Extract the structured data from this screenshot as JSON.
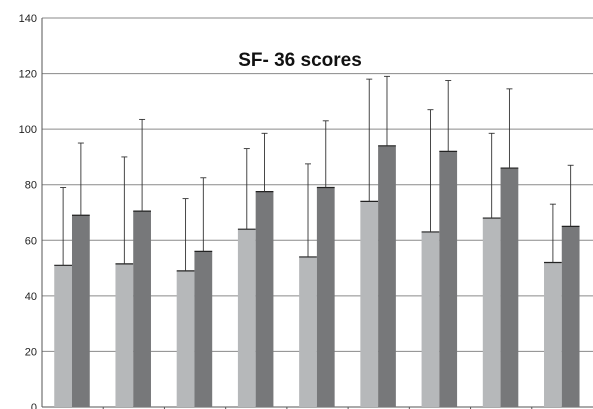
{
  "chart_data": {
    "type": "bar",
    "title": "SF- 36 scores",
    "xlabel": "",
    "ylabel": "",
    "ylim": [
      0,
      140
    ],
    "yticks": [
      0,
      20,
      40,
      60,
      80,
      100,
      120,
      140
    ],
    "grid": true,
    "error_bars": true,
    "categories": [
      "",
      "",
      "",
      "",
      "",
      "",
      "",
      "",
      ""
    ],
    "series": [
      {
        "color": "#b6b8ba",
        "values": [
          51,
          51.5,
          49,
          64,
          54,
          74,
          63,
          68,
          52
        ],
        "error_upper": [
          79,
          90,
          75,
          93,
          87.5,
          118,
          107,
          98.5,
          73
        ]
      },
      {
        "color": "#77787a",
        "values": [
          69,
          70.5,
          56,
          77.5,
          79,
          94,
          92,
          86,
          65
        ],
        "error_upper": [
          95,
          103.5,
          82.5,
          98.5,
          103,
          119,
          117.5,
          114.5,
          87
        ]
      }
    ],
    "legend": "none"
  }
}
